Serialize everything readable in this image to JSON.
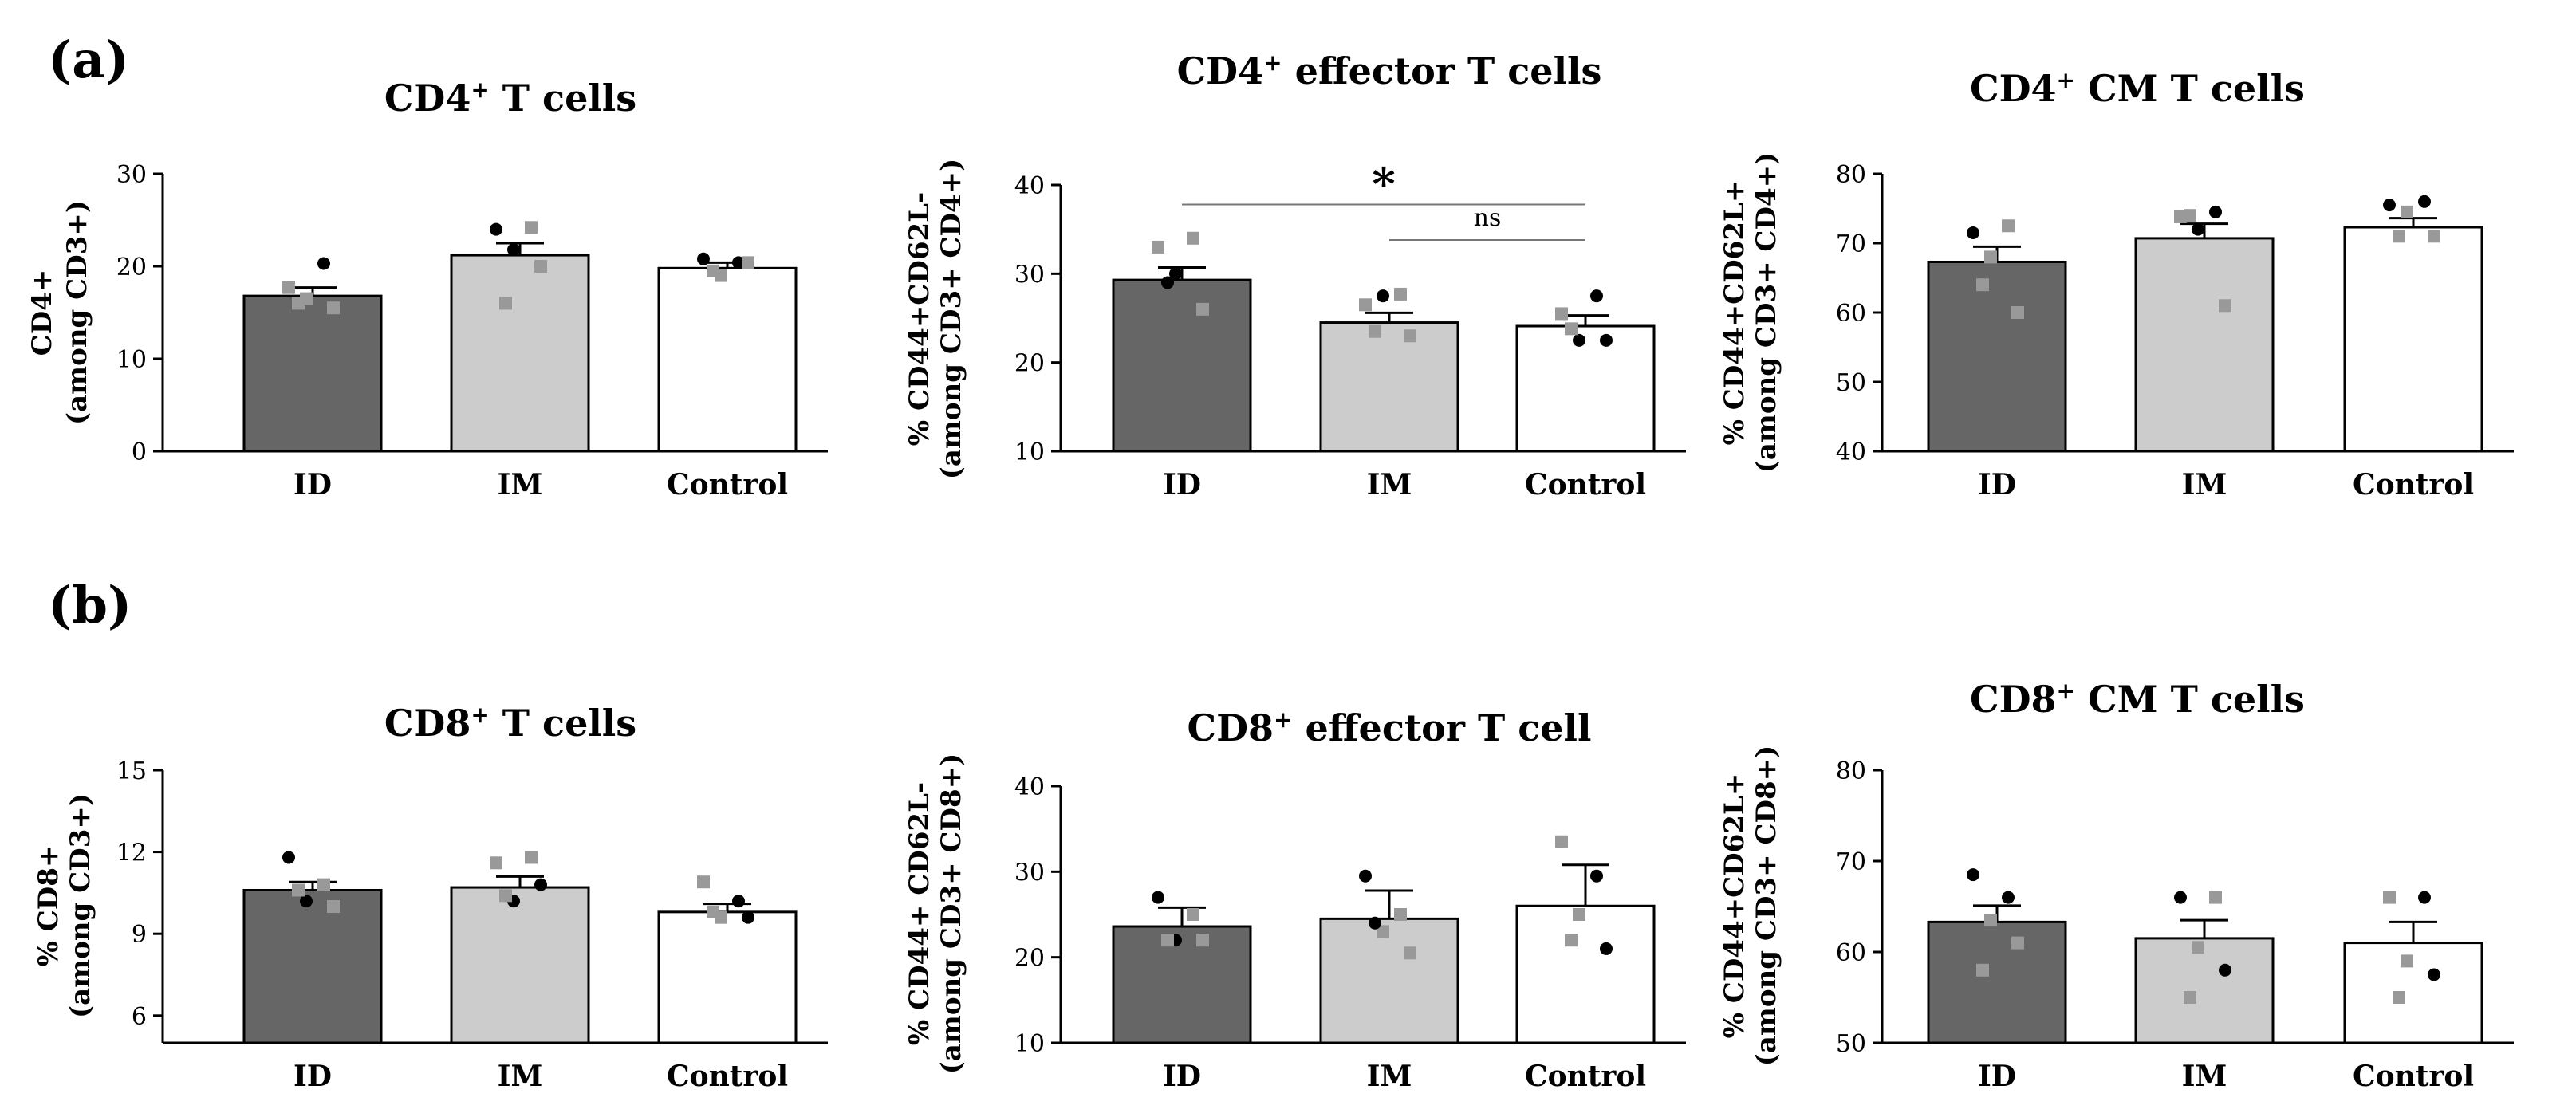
{
  "panels": {
    "a": "(a)",
    "b": "(b)"
  },
  "colors": {
    "ID": "#666666",
    "IM": "#cccccc",
    "Control": "#ffffff",
    "point_dark": "#000000",
    "point_light": "#999999"
  },
  "chart_data": [
    {
      "type": "bar",
      "title_main": "CD4",
      "title_sup": "+",
      "title_rest": " T cells",
      "ylabel_lines": [
        "CD4+",
        "(among CD3+)"
      ],
      "categories": [
        "ID",
        "IM",
        "Control"
      ],
      "values": [
        16.8,
        21.2,
        19.8
      ],
      "errors": [
        0.9,
        1.3,
        0.6
      ],
      "ylim": [
        0,
        30
      ],
      "yticks": [
        0,
        10,
        20,
        30
      ],
      "points": [
        [
          [
            17.7,
            1
          ],
          [
            20.3,
            0
          ],
          [
            16.5,
            1
          ],
          [
            15.5,
            1
          ],
          [
            16.0,
            1
          ]
        ],
        [
          [
            24.0,
            0
          ],
          [
            24.2,
            1
          ],
          [
            21.8,
            0
          ],
          [
            20.0,
            1
          ],
          [
            16.0,
            1
          ]
        ],
        [
          [
            20.8,
            0
          ],
          [
            20.4,
            0
          ],
          [
            19.0,
            1
          ],
          [
            20.4,
            1
          ],
          [
            19.5,
            1
          ]
        ]
      ]
    },
    {
      "type": "bar",
      "title_main": "CD4",
      "title_sup": "+",
      "title_rest": " effector T cells",
      "ylabel_lines": [
        "% CD44+CD62L-",
        "(among CD3+ CD4+)"
      ],
      "categories": [
        "ID",
        "IM",
        "Control"
      ],
      "values": [
        29.3,
        24.5,
        24.1
      ],
      "errors": [
        1.4,
        1.1,
        1.2
      ],
      "ylim": [
        10,
        40
      ],
      "yticks": [
        10,
        20,
        30,
        40
      ],
      "points": [
        [
          [
            33.0,
            1
          ],
          [
            34.0,
            1
          ],
          [
            30.0,
            0
          ],
          [
            26.0,
            1
          ],
          [
            29.0,
            0
          ]
        ],
        [
          [
            26.5,
            1
          ],
          [
            27.7,
            1
          ],
          [
            27.5,
            0
          ],
          [
            23.0,
            1
          ],
          [
            23.5,
            1
          ]
        ],
        [
          [
            25.5,
            1
          ],
          [
            27.5,
            0
          ],
          [
            22.5,
            0
          ],
          [
            22.5,
            0
          ],
          [
            23.8,
            1
          ]
        ]
      ],
      "annotations": [
        {
          "text": "*",
          "from": 0,
          "to": 2,
          "y": 37.8
        },
        {
          "text": "ns",
          "from": 1,
          "to": 2,
          "y": 33.8
        }
      ]
    },
    {
      "type": "bar",
      "title_main": "CD4",
      "title_sup": "+",
      "title_rest": " CM T cells",
      "ylabel_lines": [
        "% CD44+CD62L+",
        "(among CD3+ CD4+)"
      ],
      "categories": [
        "ID",
        "IM",
        "Control"
      ],
      "values": [
        67.3,
        70.7,
        72.3
      ],
      "errors": [
        2.2,
        2.1,
        1.3
      ],
      "ylim": [
        40,
        80
      ],
      "yticks": [
        40,
        50,
        60,
        70,
        80
      ],
      "points": [
        [
          [
            71.5,
            0
          ],
          [
            72.5,
            1
          ],
          [
            68.0,
            1
          ],
          [
            60.0,
            1
          ],
          [
            64.0,
            1
          ]
        ],
        [
          [
            73.8,
            1
          ],
          [
            74.5,
            0
          ],
          [
            72.0,
            0
          ],
          [
            61.0,
            1
          ],
          [
            74.0,
            1
          ]
        ],
        [
          [
            75.5,
            0
          ],
          [
            76.0,
            0
          ],
          [
            74.5,
            1
          ],
          [
            71.0,
            1
          ],
          [
            71.0,
            1
          ]
        ]
      ]
    },
    {
      "type": "bar",
      "title_main": "CD8",
      "title_sup": "+",
      "title_rest": " T cells",
      "ylabel_lines": [
        "% CD8+",
        "(among CD3+)"
      ],
      "categories": [
        "ID",
        "IM",
        "Control"
      ],
      "values": [
        10.6,
        10.7,
        9.8
      ],
      "errors": [
        0.3,
        0.4,
        0.3
      ],
      "ylim": [
        5,
        15
      ],
      "yticks": [
        6,
        9,
        12,
        15
      ],
      "points": [
        [
          [
            11.8,
            0
          ],
          [
            10.8,
            1
          ],
          [
            10.2,
            0
          ],
          [
            10.0,
            1
          ],
          [
            10.6,
            1
          ]
        ],
        [
          [
            11.6,
            1
          ],
          [
            11.8,
            1
          ],
          [
            10.2,
            0
          ],
          [
            10.8,
            0
          ],
          [
            10.4,
            1
          ]
        ],
        [
          [
            10.9,
            1
          ],
          [
            10.2,
            0
          ],
          [
            9.6,
            1
          ],
          [
            9.6,
            0
          ],
          [
            9.8,
            1
          ]
        ]
      ]
    },
    {
      "type": "bar",
      "title_main": "CD8",
      "title_sup": "+",
      "title_rest": " effector T cell",
      "ylabel_lines": [
        "% CD44+ CD62L-",
        "(among CD3+ CD8+)"
      ],
      "categories": [
        "ID",
        "IM",
        "Control"
      ],
      "values": [
        23.6,
        24.5,
        26.0
      ],
      "errors": [
        2.2,
        3.3,
        4.8
      ],
      "ylim": [
        10,
        40
      ],
      "yticks": [
        10,
        20,
        30,
        40
      ],
      "points": [
        [
          [
            27.0,
            0
          ],
          [
            25.0,
            1
          ],
          [
            22.0,
            0
          ],
          [
            22.0,
            1
          ],
          [
            22.0,
            1
          ]
        ],
        [
          [
            29.5,
            0
          ],
          [
            25.0,
            1
          ],
          [
            23.0,
            1
          ],
          [
            20.5,
            1
          ],
          [
            24.0,
            0
          ]
        ],
        [
          [
            33.5,
            1
          ],
          [
            29.5,
            0
          ],
          [
            25.0,
            1
          ],
          [
            21.0,
            0
          ],
          [
            22.0,
            1
          ]
        ]
      ]
    },
    {
      "type": "bar",
      "title_main": "CD8",
      "title_sup": "+",
      "title_rest": " CM T cells",
      "ylabel_lines": [
        "% CD44+CD62L+",
        "(among CD3+ CD8+)"
      ],
      "categories": [
        "ID",
        "IM",
        "Control"
      ],
      "values": [
        63.3,
        61.5,
        61.0
      ],
      "errors": [
        1.8,
        2.0,
        2.3
      ],
      "ylim": [
        50,
        80
      ],
      "yticks": [
        50,
        60,
        70,
        80
      ],
      "points": [
        [
          [
            68.5,
            0
          ],
          [
            66.0,
            0
          ],
          [
            63.5,
            1
          ],
          [
            61.0,
            1
          ],
          [
            58.0,
            1
          ]
        ],
        [
          [
            66.0,
            0
          ],
          [
            66.0,
            1
          ],
          [
            60.5,
            1
          ],
          [
            58.0,
            0
          ],
          [
            55.0,
            1
          ]
        ],
        [
          [
            66.0,
            1
          ],
          [
            66.0,
            0
          ],
          [
            59.0,
            1
          ],
          [
            57.5,
            0
          ],
          [
            55.0,
            1
          ]
        ]
      ]
    }
  ]
}
